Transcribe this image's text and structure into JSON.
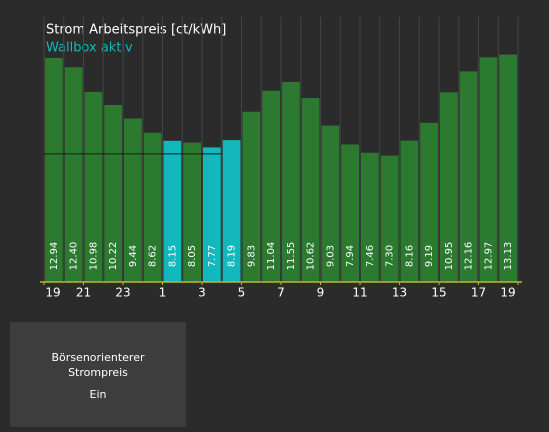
{
  "chart_data": {
    "type": "bar",
    "title": "Strom Arbeitspreis [ct/kWh]",
    "subtitle": "Wallbox aktiv",
    "subtitle_color": "#12b8bb",
    "values": [
      12.94,
      12.4,
      10.98,
      10.22,
      9.44,
      8.62,
      8.15,
      8.05,
      7.77,
      8.19,
      9.83,
      11.04,
      11.55,
      10.62,
      9.03,
      7.94,
      7.46,
      7.3,
      8.16,
      9.19,
      10.95,
      12.16,
      12.97,
      13.13
    ],
    "value_labels": [
      "12.94",
      "12.40",
      "10.98",
      "10.22",
      "9.44",
      "8.62",
      "8.15",
      "8.05",
      "7.77",
      "8.19",
      "9.83",
      "11.04",
      "11.55",
      "10.62",
      "9.03",
      "7.94",
      "7.46",
      "7.30",
      "8.16",
      "9.19",
      "10.95",
      "12.16",
      "12.97",
      "13.13"
    ],
    "colors": [
      "#2b7a30",
      "#2b7a30",
      "#2b7a30",
      "#2b7a30",
      "#2b7a30",
      "#2b7a30",
      "#12b8bb",
      "#2b7a30",
      "#12b8bb",
      "#12b8bb",
      "#2b7a30",
      "#2b7a30",
      "#2b7a30",
      "#2b7a30",
      "#2b7a30",
      "#2b7a30",
      "#2b7a30",
      "#2b7a30",
      "#2b7a30",
      "#2b7a30",
      "#2b7a30",
      "#2b7a30",
      "#2b7a30",
      "#2b7a30"
    ],
    "ylim": [
      0,
      15.3
    ],
    "xlim": [
      0,
      24
    ],
    "xticks": [
      {
        "value": 0,
        "label": "19"
      },
      {
        "value": 2,
        "label": "21"
      },
      {
        "value": 4,
        "label": "23"
      },
      {
        "value": 6,
        "label": "1"
      },
      {
        "value": 8,
        "label": "3"
      },
      {
        "value": 10,
        "label": "5"
      },
      {
        "value": 12,
        "label": "7"
      },
      {
        "value": 14,
        "label": "9"
      },
      {
        "value": 16,
        "label": "11"
      },
      {
        "value": 18,
        "label": "13"
      },
      {
        "value": 20,
        "label": "15"
      },
      {
        "value": 22,
        "label": "17"
      },
      {
        "value": 24,
        "label": "19"
      }
    ],
    "reference_line": 7.4
  },
  "tile": {
    "title": "Börsenorienterer Strompreis",
    "state": "Ein"
  }
}
